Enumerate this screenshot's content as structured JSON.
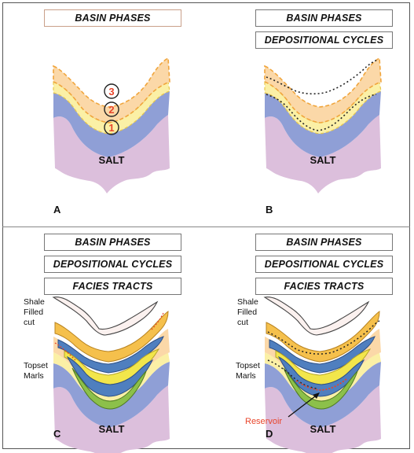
{
  "boxes": {
    "basin_phases": "BASIN PHASES",
    "depositional_cycles": "DEPOSITIONAL CYCLES",
    "facies_tracts": "FACIES TRACTS"
  },
  "panels": {
    "a": {
      "letter": "A",
      "salt": "SALT",
      "phase_numbers": [
        "1",
        "2",
        "3"
      ]
    },
    "b": {
      "letter": "B",
      "salt": "SALT"
    },
    "c": {
      "letter": "C",
      "salt": "SALT",
      "shale_lines": [
        "Shale",
        "Filled",
        "cut"
      ],
      "topset_lines": [
        "Topset",
        "Marls"
      ]
    },
    "d": {
      "letter": "D",
      "salt": "SALT",
      "shale_lines": [
        "Shale",
        "Filled",
        "cut"
      ],
      "topset_lines": [
        "Topset",
        "Marls"
      ],
      "reservoir": "Reservoir"
    }
  },
  "colors": {
    "salt": "#dcbfdc",
    "blue_phase": "#8f9fd6",
    "yellow_phase": "#fbf0a6",
    "orange_phase": "#fbd8a8",
    "orange_outline": "#f0a53c",
    "dark_blue_facies": "#4f7fbf",
    "yellow_facies": "#f2e64b",
    "green_facies": "#8cc04a",
    "reservoir_text": "#e8452b"
  }
}
